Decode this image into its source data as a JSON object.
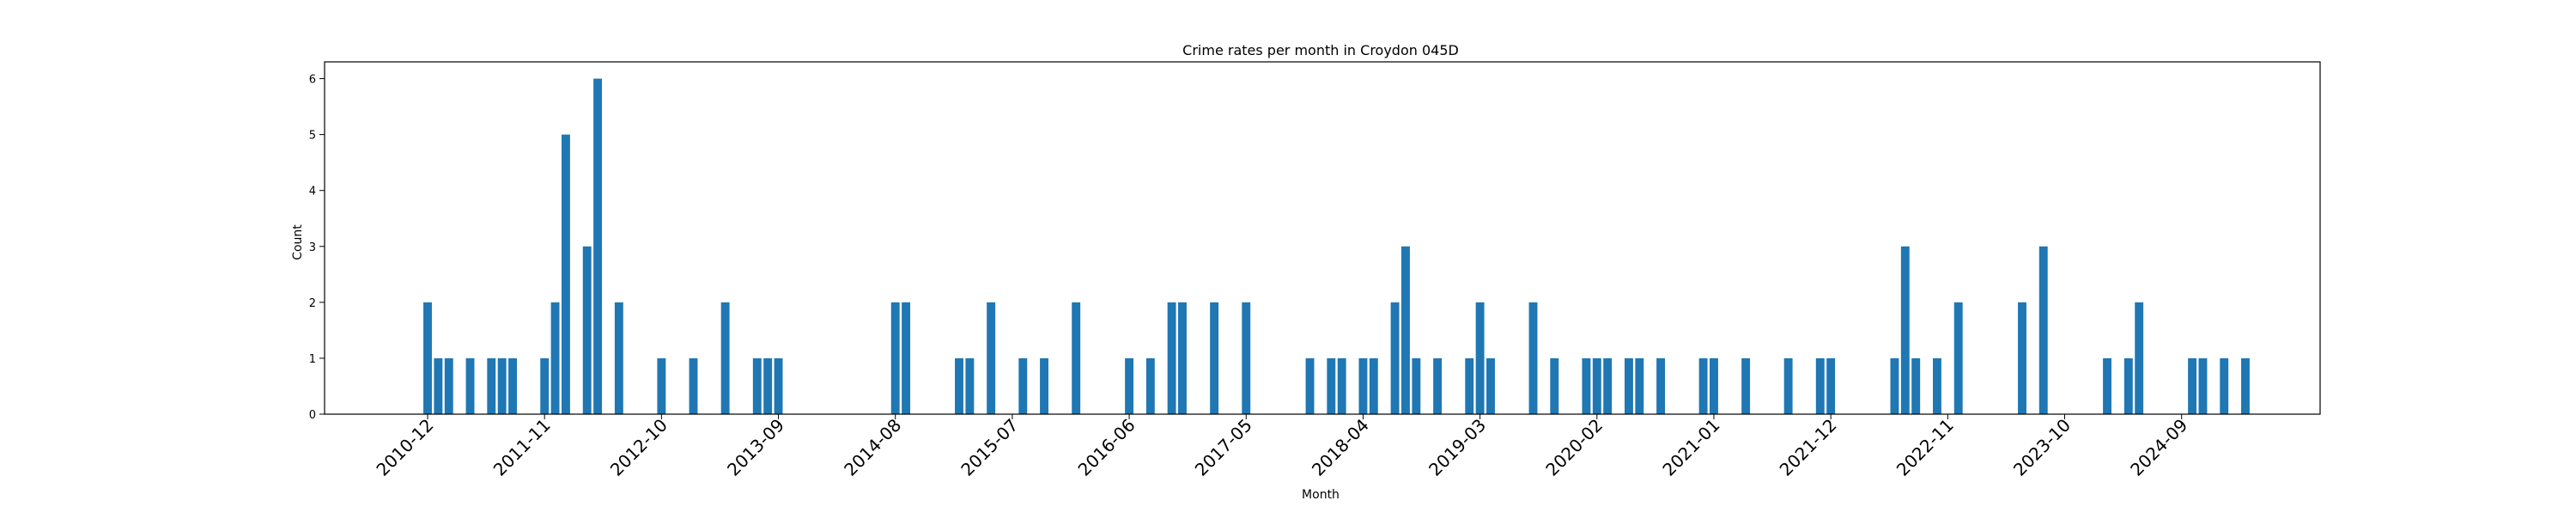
{
  "chart_data": {
    "type": "bar",
    "title": "Crime rates per month in Croydon 045D",
    "xlabel": "Month",
    "ylabel": "Count",
    "ylim": [
      0,
      6.3
    ],
    "yticks": [
      0,
      1,
      2,
      3,
      4,
      5,
      6
    ],
    "xticks": [
      "2010-12",
      "2011-11",
      "2012-10",
      "2013-09",
      "2014-08",
      "2015-07",
      "2016-06",
      "2017-05",
      "2018-04",
      "2019-03",
      "2020-02",
      "2021-01",
      "2021-12",
      "2022-11",
      "2023-10",
      "2024-09"
    ],
    "grid": false,
    "bar_color": "#1f77b4",
    "x": [
      "2010-12",
      "2011-01",
      "2011-02",
      "2011-04",
      "2011-06",
      "2011-07",
      "2011-08",
      "2011-11",
      "2011-12",
      "2012-01",
      "2012-03",
      "2012-04",
      "2012-06",
      "2012-10",
      "2013-01",
      "2013-04",
      "2013-07",
      "2013-08",
      "2013-09",
      "2014-08",
      "2014-09",
      "2015-02",
      "2015-03",
      "2015-05",
      "2015-08",
      "2015-10",
      "2016-01",
      "2016-06",
      "2016-08",
      "2016-10",
      "2016-11",
      "2017-02",
      "2017-05",
      "2017-11",
      "2018-01",
      "2018-02",
      "2018-04",
      "2018-05",
      "2018-07",
      "2018-08",
      "2018-09",
      "2018-11",
      "2019-02",
      "2019-03",
      "2019-04",
      "2019-08",
      "2019-10",
      "2020-01",
      "2020-02",
      "2020-03",
      "2020-05",
      "2020-06",
      "2020-08",
      "2020-12",
      "2021-01",
      "2021-04",
      "2021-08",
      "2021-11",
      "2021-12",
      "2022-06",
      "2022-07",
      "2022-08",
      "2022-10",
      "2022-12",
      "2023-06",
      "2023-08",
      "2024-02",
      "2024-04",
      "2024-05",
      "2024-10",
      "2024-11",
      "2025-01",
      "2025-03"
    ],
    "values": [
      2,
      1,
      1,
      1,
      1,
      1,
      1,
      1,
      2,
      5,
      3,
      6,
      2,
      1,
      1,
      2,
      1,
      1,
      1,
      2,
      2,
      1,
      1,
      2,
      1,
      1,
      2,
      1,
      1,
      2,
      2,
      2,
      2,
      1,
      1,
      1,
      1,
      1,
      2,
      3,
      1,
      1,
      1,
      2,
      1,
      2,
      1,
      1,
      1,
      1,
      1,
      1,
      1,
      1,
      1,
      1,
      1,
      1,
      1,
      1,
      3,
      1,
      1,
      2,
      2,
      3,
      1,
      1,
      2,
      1,
      1,
      1,
      1
    ]
  }
}
